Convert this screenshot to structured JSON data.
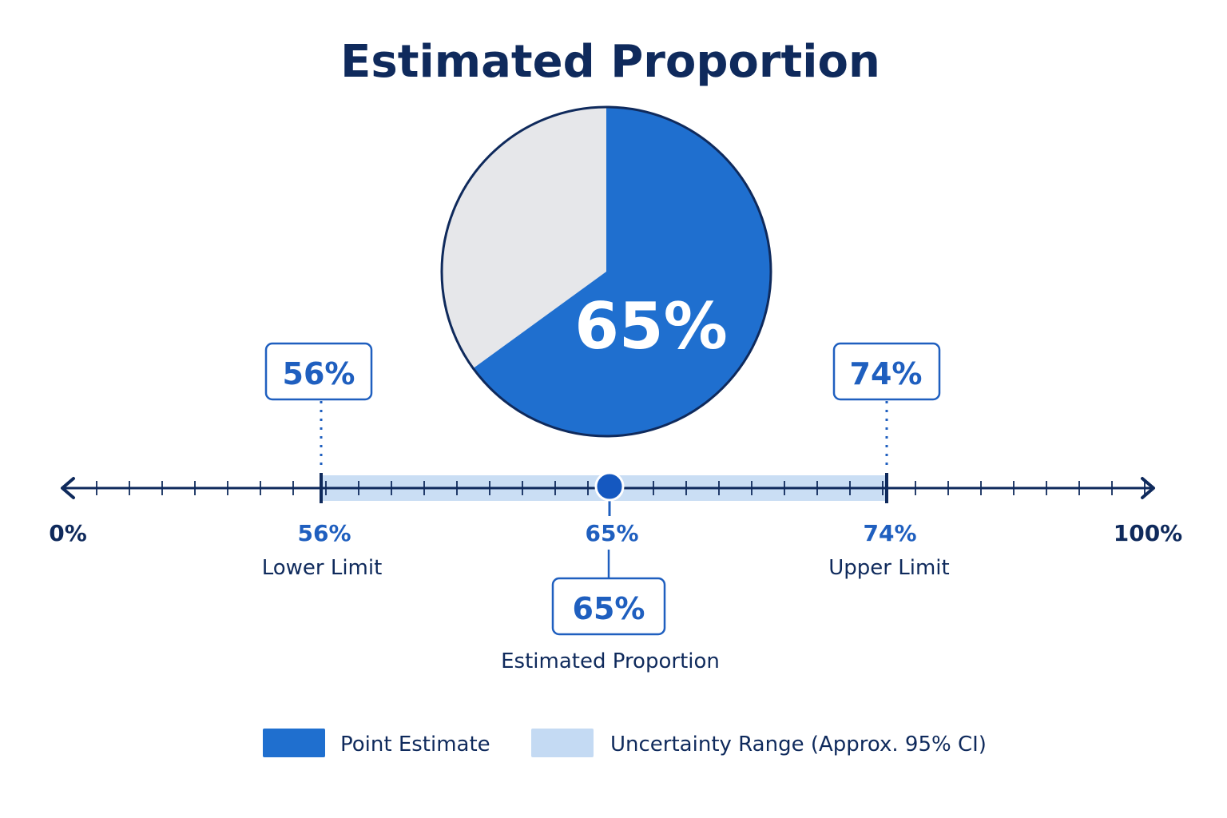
{
  "chart_data": {
    "type": "pie",
    "title": "Estimated Proportion",
    "pie": {
      "value": 65,
      "remainder": 35,
      "label": "65%"
    },
    "axis": {
      "min": 0,
      "max": 100,
      "min_label": "0%",
      "max_label": "100%"
    },
    "estimate": {
      "value": 65,
      "label": "65%",
      "callout": "65%",
      "caption": "Estimated Proportion"
    },
    "lower": {
      "value": 56,
      "label": "56%",
      "callout": "56%",
      "caption": "Lower Limit"
    },
    "upper": {
      "value": 74,
      "label": "74%",
      "callout": "74%",
      "caption": "Upper Limit"
    },
    "legend": [
      {
        "name": "Point Estimate",
        "color": "#1f6fcf"
      },
      {
        "name": "Uncertainty Range (Approx. 95% CI)",
        "color": "#c4daf3"
      }
    ],
    "colors": {
      "primary": "#1f6fcf",
      "dark": "#0f2a5c",
      "remainder": "#e6e7ea",
      "band": "#c4daf3"
    }
  }
}
